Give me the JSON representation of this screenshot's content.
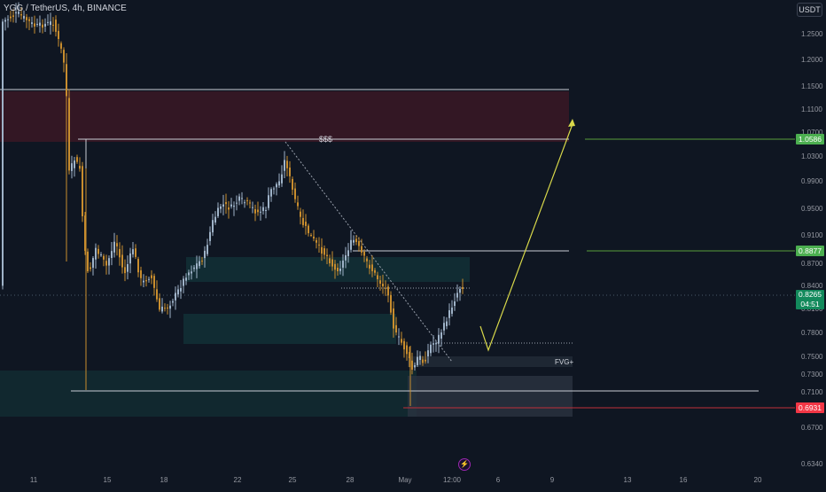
{
  "header": {
    "symbol": "YGG / TetherUS, 4h, BINANCE",
    "currency_button": "USDT"
  },
  "price_axis": {
    "ticks": [
      "1.2500",
      "1.2000",
      "1.1500",
      "1.1100",
      "1.0700",
      "1.0300",
      "0.9900",
      "0.9500",
      "0.9100",
      "0.8700",
      "0.8400",
      "0.8100",
      "0.7800",
      "0.7500",
      "0.7300",
      "0.7100",
      "0.6700",
      "0.6340"
    ],
    "tags": {
      "target": {
        "label": "1.0586",
        "color": "#4caf50"
      },
      "resistance": {
        "label": "0.8877",
        "color": "#4caf50"
      },
      "current": {
        "label": "0.8265",
        "countdown": "04:51",
        "color": "#138a5c"
      },
      "stop": {
        "label": "0.6931",
        "color": "#f23645"
      }
    }
  },
  "time_axis": {
    "ticks": [
      "11",
      "15",
      "18",
      "22",
      "25",
      "28",
      "May",
      "12:00",
      "6",
      "9",
      "13",
      "16",
      "20"
    ]
  },
  "annotations": {
    "liquidity_label": "$$$",
    "fvg_label": "FVG+"
  },
  "colors": {
    "background": "#0f1622",
    "bull": "#9fb3c8",
    "bear": "#c88d2e",
    "supply_zone": "#3a1824",
    "demand_zone": "#123238",
    "projection": "#d8d84a",
    "level_line": "#c8ccd4",
    "green_level": "#5a9e3a",
    "stop_line": "#c0303a"
  },
  "icons": {
    "replay": "lightning-icon"
  }
}
